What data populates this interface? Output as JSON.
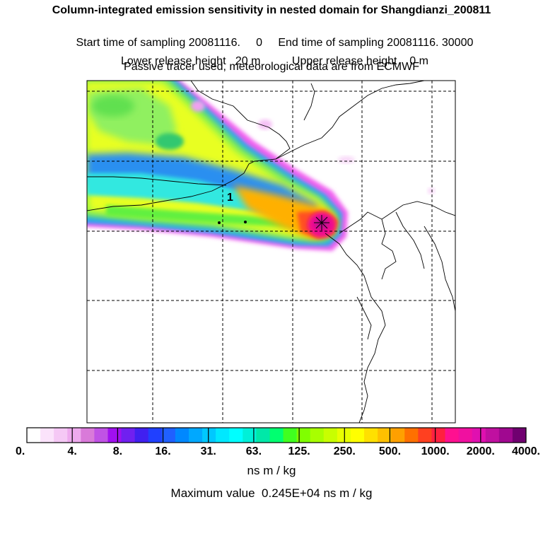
{
  "header": {
    "title": "Column-integrated emission sensitivity in nested domain for Shangdianzi_200811",
    "start_label": "Start time of sampling",
    "start_value": "20081116.     0",
    "end_label": "End time of sampling",
    "end_value": "20081116. 30000",
    "lower_label": "Lower release height",
    "lower_value": "20 m",
    "upper_label": "Upper release height",
    "upper_value": "0 m",
    "info": "Passive tracer used, meteorological data are from ECMWF"
  },
  "map": {
    "contour_label": "1"
  },
  "colorbar": {
    "tick_labels": [
      "0.",
      "4.",
      "8.",
      "16.",
      "31.",
      "63.",
      "125.",
      "250.",
      "500.",
      "1000.",
      "2000.",
      "4000."
    ],
    "colors": [
      "#ffffff",
      "#fbe3fb",
      "#f5c8f5",
      "#eeaaee",
      "#d97ad9",
      "#c052e5",
      "#a010f0",
      "#7020f0",
      "#4020f0",
      "#2040ff",
      "#2060ff",
      "#0088ff",
      "#00a8ff",
      "#00c8ff",
      "#00e8ff",
      "#00ffff",
      "#00f0d8",
      "#00e8a8",
      "#00ff70",
      "#40ff20",
      "#80ff00",
      "#a8ff00",
      "#c8ff00",
      "#e8ff00",
      "#ffff00",
      "#ffe000",
      "#ffc000",
      "#ffa000",
      "#ff7000",
      "#ff4020",
      "#ff2040",
      "#ff1090",
      "#f010a0",
      "#e010b0",
      "#c010a0",
      "#a00890",
      "#700070"
    ],
    "units": "ns m / kg"
  },
  "max_value_text": "Maximum value  0.245E+04 ns m / kg",
  "chart_data": {
    "type": "heatmap",
    "title": "Column-integrated emission sensitivity in nested domain for Shangdianzi_200811",
    "colorbar_levels": [
      0,
      4,
      8,
      16,
      31,
      63,
      125,
      250,
      500,
      1000,
      2000,
      4000
    ],
    "colorbar_units": "ns m / kg",
    "maximum_value": 2450,
    "grid": "on",
    "release_site_marker": "star"
  }
}
